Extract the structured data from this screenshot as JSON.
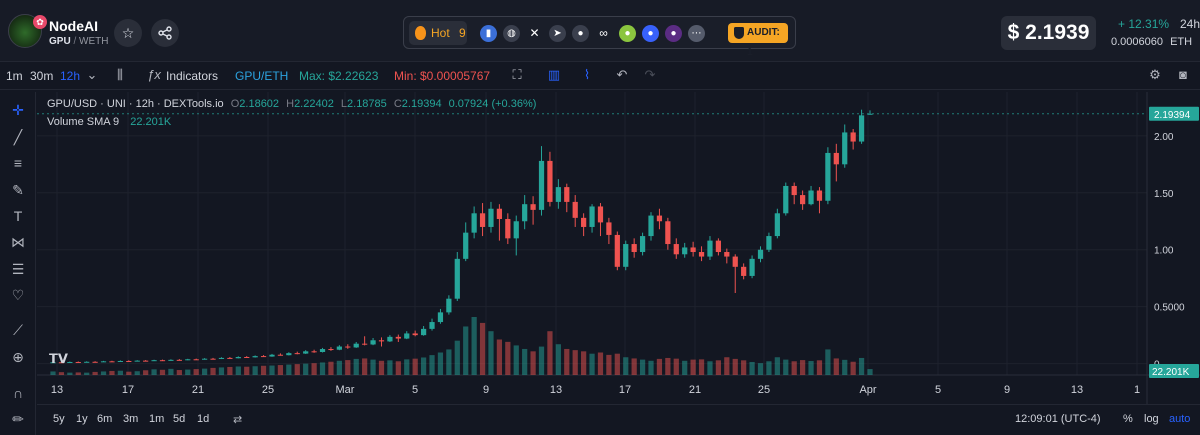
{
  "header": {
    "token_name": "NodeAI",
    "pair_base": "GPU",
    "pair_sep": "/",
    "pair_quote": "WETH",
    "hot_label": "Hot",
    "hot_rank": "9",
    "audit_label": "AUDIT: 1",
    "price": "$ 2.1939",
    "change": "+ 12.31%",
    "change_period": "24h",
    "eth_price": "0.0006060",
    "eth_unit": "ETH",
    "colors": {
      "accent": "#f5a524",
      "up": "#26a69a",
      "down": "#ef5350"
    },
    "social_icons": [
      "chart-icon",
      "globe-icon",
      "x-icon",
      "telegram-icon",
      "reddit-icon",
      "link-icon",
      "coingecko-icon",
      "cmc-icon",
      "dextools-icon",
      "more-icon"
    ]
  },
  "toolbar": {
    "intervals": [
      "1m",
      "30m",
      "12h"
    ],
    "active_interval": "12h",
    "indicators": "Indicators",
    "pair_switch": "GPU/ETH",
    "max": "Max: $2.22623",
    "min": "Min: $0.00005767"
  },
  "legend": {
    "title": "GPU/USD · UNI · 12h · DEXTools.io",
    "o_label": "O",
    "o": "2.18602",
    "h_label": "H",
    "h": "2.22402",
    "l_label": "L",
    "l": "2.18785",
    "c_label": "C",
    "c": "2.19394",
    "chg": "0.07924 (+0.36%)",
    "volume_label": "Volume SMA 9",
    "volume_value": "22.201K"
  },
  "bottom": {
    "ranges": [
      "5y",
      "1y",
      "6m",
      "3m",
      "1m",
      "5d",
      "1d"
    ],
    "clock": "12:09:01 (UTC-4)",
    "pct": "%",
    "log": "log",
    "auto": "auto"
  },
  "chart_data": {
    "type": "candlestick",
    "title": "GPU/USD · UNI · 12h · DEXTools.io",
    "x_ticks": [
      "13",
      "17",
      "21",
      "25",
      "Mar",
      "5",
      "9",
      "13",
      "17",
      "21",
      "25",
      "Apr",
      "5",
      "9",
      "13",
      "1"
    ],
    "y_ticks": [
      "0",
      "0.5000",
      "1.00",
      "1.50",
      "2.00"
    ],
    "ylim": [
      -0.1,
      2.35
    ],
    "last_price_label": "2.19394",
    "volume_label": "22.201K",
    "candles": [
      [
        0.01,
        0.012,
        0.015,
        0.008,
        1.5
      ],
      [
        0.012,
        0.011,
        0.016,
        0.009,
        1.2
      ],
      [
        0.011,
        0.014,
        0.018,
        0.01,
        1.0
      ],
      [
        0.014,
        0.013,
        0.019,
        0.011,
        1.1
      ],
      [
        0.013,
        0.016,
        0.02,
        0.012,
        1.0
      ],
      [
        0.016,
        0.015,
        0.021,
        0.013,
        1.3
      ],
      [
        0.015,
        0.02,
        0.024,
        0.014,
        1.5
      ],
      [
        0.02,
        0.019,
        0.025,
        0.016,
        1.7
      ],
      [
        0.019,
        0.023,
        0.028,
        0.017,
        1.8
      ],
      [
        0.023,
        0.021,
        0.029,
        0.019,
        1.4
      ],
      [
        0.021,
        0.026,
        0.03,
        0.02,
        1.6
      ],
      [
        0.026,
        0.024,
        0.031,
        0.022,
        2.0
      ],
      [
        0.024,
        0.03,
        0.034,
        0.023,
        2.4
      ],
      [
        0.03,
        0.027,
        0.035,
        0.025,
        2.2
      ],
      [
        0.027,
        0.033,
        0.038,
        0.026,
        2.6
      ],
      [
        0.033,
        0.031,
        0.04,
        0.029,
        2.1
      ],
      [
        0.031,
        0.038,
        0.042,
        0.03,
        2.3
      ],
      [
        0.038,
        0.036,
        0.044,
        0.033,
        2.5
      ],
      [
        0.036,
        0.043,
        0.048,
        0.035,
        2.7
      ],
      [
        0.043,
        0.041,
        0.05,
        0.038,
        3.0
      ],
      [
        0.041,
        0.05,
        0.056,
        0.04,
        3.2
      ],
      [
        0.05,
        0.047,
        0.058,
        0.044,
        3.4
      ],
      [
        0.047,
        0.058,
        0.064,
        0.046,
        3.6
      ],
      [
        0.058,
        0.055,
        0.066,
        0.051,
        3.5
      ],
      [
        0.055,
        0.066,
        0.072,
        0.053,
        3.7
      ],
      [
        0.066,
        0.062,
        0.075,
        0.058,
        3.9
      ],
      [
        0.062,
        0.078,
        0.085,
        0.06,
        4.0
      ],
      [
        0.078,
        0.074,
        0.09,
        0.07,
        4.2
      ],
      [
        0.074,
        0.092,
        0.1,
        0.072,
        4.4
      ],
      [
        0.092,
        0.088,
        0.105,
        0.082,
        4.6
      ],
      [
        0.088,
        0.108,
        0.118,
        0.085,
        4.8
      ],
      [
        0.108,
        0.102,
        0.122,
        0.095,
        5.0
      ],
      [
        0.102,
        0.128,
        0.138,
        0.098,
        5.3
      ],
      [
        0.128,
        0.122,
        0.145,
        0.112,
        5.6
      ],
      [
        0.122,
        0.15,
        0.162,
        0.118,
        6.0
      ],
      [
        0.15,
        0.142,
        0.17,
        0.13,
        6.3
      ],
      [
        0.142,
        0.175,
        0.19,
        0.138,
        6.8
      ],
      [
        0.175,
        0.168,
        0.24,
        0.16,
        7.0
      ],
      [
        0.168,
        0.205,
        0.225,
        0.162,
        6.5
      ],
      [
        0.205,
        0.195,
        0.23,
        0.15,
        6.0
      ],
      [
        0.195,
        0.235,
        0.25,
        0.19,
        6.2
      ],
      [
        0.235,
        0.22,
        0.255,
        0.19,
        5.8
      ],
      [
        0.22,
        0.265,
        0.285,
        0.215,
        6.6
      ],
      [
        0.265,
        0.25,
        0.29,
        0.24,
        6.9
      ],
      [
        0.25,
        0.305,
        0.33,
        0.245,
        7.4
      ],
      [
        0.305,
        0.365,
        0.395,
        0.29,
        8.4
      ],
      [
        0.365,
        0.45,
        0.48,
        0.35,
        9.5
      ],
      [
        0.45,
        0.57,
        0.6,
        0.43,
        10.8
      ],
      [
        0.57,
        0.92,
        0.98,
        0.55,
        14.5
      ],
      [
        0.92,
        1.15,
        1.24,
        0.9,
        20.5
      ],
      [
        1.15,
        1.32,
        1.38,
        1.1,
        24.5
      ],
      [
        1.32,
        1.2,
        1.41,
        1.12,
        22.0
      ],
      [
        1.2,
        1.36,
        1.42,
        1.15,
        18.5
      ],
      [
        1.36,
        1.27,
        1.4,
        1.08,
        15.0
      ],
      [
        1.27,
        1.1,
        1.32,
        1.05,
        14.0
      ],
      [
        1.1,
        1.25,
        1.3,
        0.95,
        12.5
      ],
      [
        1.25,
        1.4,
        1.48,
        1.18,
        11.0
      ],
      [
        1.4,
        1.35,
        1.47,
        1.22,
        10.0
      ],
      [
        1.35,
        1.78,
        1.91,
        1.3,
        12.0
      ],
      [
        1.78,
        1.42,
        1.86,
        1.38,
        18.5
      ],
      [
        1.42,
        1.55,
        1.62,
        1.36,
        13.0
      ],
      [
        1.55,
        1.42,
        1.58,
        1.33,
        11.0
      ],
      [
        1.42,
        1.28,
        1.48,
        1.2,
        10.5
      ],
      [
        1.28,
        1.2,
        1.32,
        1.12,
        10.0
      ],
      [
        1.2,
        1.38,
        1.4,
        1.15,
        9.0
      ],
      [
        1.38,
        1.24,
        1.41,
        1.12,
        9.5
      ],
      [
        1.24,
        1.13,
        1.28,
        1.05,
        8.5
      ],
      [
        1.13,
        0.85,
        1.16,
        0.82,
        9.0
      ],
      [
        0.85,
        1.05,
        1.08,
        0.82,
        7.5
      ],
      [
        1.05,
        0.98,
        1.1,
        0.93,
        7.0
      ],
      [
        0.98,
        1.12,
        1.15,
        0.95,
        6.5
      ],
      [
        1.12,
        1.3,
        1.33,
        1.08,
        6.0
      ],
      [
        1.3,
        1.25,
        1.36,
        1.18,
        6.8
      ],
      [
        1.25,
        1.05,
        1.28,
        1.0,
        7.2
      ],
      [
        1.05,
        0.96,
        1.1,
        0.92,
        6.9
      ],
      [
        0.96,
        1.02,
        1.06,
        0.93,
        6.0
      ],
      [
        1.02,
        0.98,
        1.07,
        0.94,
        6.5
      ],
      [
        0.98,
        0.94,
        1.03,
        0.9,
        6.6
      ],
      [
        0.94,
        1.08,
        1.12,
        0.91,
        5.8
      ],
      [
        1.08,
        0.98,
        1.1,
        0.95,
        6.2
      ],
      [
        0.98,
        0.94,
        1.01,
        0.88,
        7.5
      ],
      [
        0.94,
        0.85,
        0.96,
        0.62,
        6.8
      ],
      [
        0.85,
        0.77,
        0.88,
        0.74,
        6.2
      ],
      [
        0.77,
        0.92,
        0.95,
        0.75,
        5.5
      ],
      [
        0.92,
        1.0,
        1.03,
        0.89,
        5.0
      ],
      [
        1.0,
        1.12,
        1.15,
        0.98,
        5.8
      ],
      [
        1.12,
        1.32,
        1.36,
        1.1,
        7.5
      ],
      [
        1.32,
        1.56,
        1.59,
        1.3,
        6.5
      ],
      [
        1.56,
        1.48,
        1.59,
        1.4,
        5.8
      ],
      [
        1.48,
        1.4,
        1.52,
        1.35,
        6.3
      ],
      [
        1.4,
        1.52,
        1.56,
        1.39,
        5.9
      ],
      [
        1.52,
        1.43,
        1.55,
        1.32,
        6.2
      ],
      [
        1.43,
        1.85,
        1.9,
        1.4,
        10.8
      ],
      [
        1.85,
        1.75,
        1.93,
        1.6,
        7.0
      ],
      [
        1.75,
        2.03,
        2.1,
        1.72,
        6.4
      ],
      [
        2.03,
        1.95,
        2.06,
        1.88,
        5.6
      ],
      [
        1.95,
        2.18,
        2.23,
        1.93,
        7.2
      ],
      [
        2.186,
        2.194,
        2.224,
        2.188,
        2.5
      ]
    ]
  }
}
